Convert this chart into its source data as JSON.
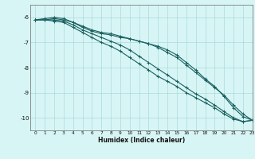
{
  "xlabel": "Humidex (Indice chaleur)",
  "bg_color": "#d8f5f5",
  "grid_color": "#aadada",
  "line_color": "#1a6060",
  "xlim": [
    -0.5,
    23
  ],
  "ylim": [
    -10.5,
    -5.5
  ],
  "yticks": [
    -10,
    -9,
    -8,
    -7,
    -6
  ],
  "xticks": [
    0,
    1,
    2,
    3,
    4,
    5,
    6,
    7,
    8,
    9,
    10,
    11,
    12,
    13,
    14,
    15,
    16,
    17,
    18,
    19,
    20,
    21,
    22,
    23
  ],
  "series": [
    [
      -6.1,
      -6.1,
      -6.05,
      -6.1,
      -6.2,
      -6.35,
      -6.5,
      -6.6,
      -6.65,
      -6.75,
      -6.85,
      -6.95,
      -7.05,
      -7.2,
      -7.4,
      -7.6,
      -7.9,
      -8.2,
      -8.5,
      -8.8,
      -9.1,
      -9.5,
      -9.85,
      -10.1
    ],
    [
      -6.1,
      -6.1,
      -6.1,
      -6.15,
      -6.3,
      -6.5,
      -6.65,
      -6.8,
      -6.95,
      -7.1,
      -7.3,
      -7.55,
      -7.8,
      -8.05,
      -8.3,
      -8.55,
      -8.8,
      -9.05,
      -9.25,
      -9.5,
      -9.75,
      -10.0,
      -10.15,
      -10.1
    ],
    [
      -6.1,
      -6.1,
      -6.15,
      -6.2,
      -6.4,
      -6.6,
      -6.8,
      -7.0,
      -7.15,
      -7.35,
      -7.6,
      -7.85,
      -8.1,
      -8.35,
      -8.55,
      -8.75,
      -9.0,
      -9.2,
      -9.4,
      -9.6,
      -9.85,
      -10.05,
      -10.15,
      -10.1
    ],
    [
      -6.1,
      -6.05,
      -6.0,
      -6.05,
      -6.2,
      -6.4,
      -6.55,
      -6.65,
      -6.7,
      -6.8,
      -6.85,
      -6.95,
      -7.05,
      -7.15,
      -7.3,
      -7.5,
      -7.8,
      -8.1,
      -8.45,
      -8.75,
      -9.15,
      -9.6,
      -9.95,
      -10.1
    ]
  ]
}
